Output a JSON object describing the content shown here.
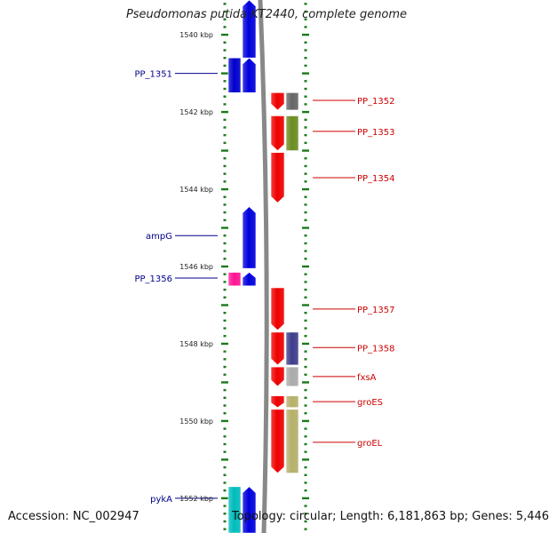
{
  "title": "Pseudomonas putida KT2440, complete genome",
  "accession_label": "Accession: NC_002947",
  "summary_label": "Topology: circular; Length: 6,181,863 bp; Genes: 5,446",
  "scale": {
    "start_kbp": 1539.1,
    "end_kbp": 1552.9,
    "tick_labels": [
      {
        "kbp": 1540,
        "text": "1540 kbp"
      },
      {
        "kbp": 1542,
        "text": "1542 kbp"
      },
      {
        "kbp": 1544,
        "text": "1544 kbp"
      },
      {
        "kbp": 1546,
        "text": "1546 kbp"
      },
      {
        "kbp": 1548,
        "text": "1548 kbp"
      },
      {
        "kbp": 1550,
        "text": "1550 kbp"
      },
      {
        "kbp": 1552,
        "text": "1552 kbp"
      }
    ]
  },
  "colors": {
    "forward_strand": "#0000dd",
    "reverse_strand": "#ee0000",
    "forward_label": "#00008b",
    "reverse_label": "#cc0000",
    "tick": "#1a7a1a",
    "backbone": "#888888"
  },
  "genes": [
    {
      "name": "",
      "strand": "+",
      "start_kbp": 1539.1,
      "end_kbp": 1540.6,
      "lane": "cds"
    },
    {
      "name": "PP_1351",
      "strand": "+",
      "start_kbp": 1540.6,
      "end_kbp": 1541.5,
      "lane": "cds"
    },
    {
      "name": "PP_1351",
      "strand": "+",
      "start_kbp": 1540.6,
      "end_kbp": 1541.5,
      "lane": "feature",
      "color": "#0000cc"
    },
    {
      "name": "PP_1352",
      "strand": "-",
      "start_kbp": 1541.5,
      "end_kbp": 1541.95,
      "lane": "cds"
    },
    {
      "name": "PP_1352",
      "strand": "-",
      "start_kbp": 1541.5,
      "end_kbp": 1541.95,
      "lane": "feature",
      "color": "#666666"
    },
    {
      "name": "PP_1353",
      "strand": "-",
      "start_kbp": 1542.1,
      "end_kbp": 1543.0,
      "lane": "cds"
    },
    {
      "name": "PP_1353",
      "strand": "-",
      "start_kbp": 1542.1,
      "end_kbp": 1543.0,
      "lane": "feature",
      "color": "#6b8c21"
    },
    {
      "name": "PP_1354",
      "strand": "-",
      "start_kbp": 1543.05,
      "end_kbp": 1544.35,
      "lane": "cds"
    },
    {
      "name": "ampG",
      "strand": "+",
      "start_kbp": 1544.45,
      "end_kbp": 1546.05,
      "lane": "cds"
    },
    {
      "name": "PP_1356",
      "strand": "+",
      "start_kbp": 1546.15,
      "end_kbp": 1546.5,
      "lane": "cds"
    },
    {
      "name": "PP_1356",
      "strand": "+",
      "start_kbp": 1546.15,
      "end_kbp": 1546.5,
      "lane": "feature",
      "color": "#ff1493"
    },
    {
      "name": "PP_1357",
      "strand": "-",
      "start_kbp": 1546.55,
      "end_kbp": 1547.65,
      "lane": "cds"
    },
    {
      "name": "PP_1358",
      "strand": "-",
      "start_kbp": 1547.7,
      "end_kbp": 1548.55,
      "lane": "cds"
    },
    {
      "name": "PP_1358",
      "strand": "-",
      "start_kbp": 1547.7,
      "end_kbp": 1548.55,
      "lane": "feature",
      "color": "#3d3d8c"
    },
    {
      "name": "fxsA",
      "strand": "-",
      "start_kbp": 1548.6,
      "end_kbp": 1549.1,
      "lane": "cds"
    },
    {
      "name": "fxsA",
      "strand": "-",
      "start_kbp": 1548.6,
      "end_kbp": 1549.1,
      "lane": "feature",
      "color": "#aaaaaa"
    },
    {
      "name": "groES",
      "strand": "-",
      "start_kbp": 1549.35,
      "end_kbp": 1549.65,
      "lane": "cds"
    },
    {
      "name": "groES",
      "strand": "-",
      "start_kbp": 1549.35,
      "end_kbp": 1549.65,
      "lane": "feature",
      "color": "#b5b06a"
    },
    {
      "name": "groEL",
      "strand": "-",
      "start_kbp": 1549.7,
      "end_kbp": 1551.35,
      "lane": "cds"
    },
    {
      "name": "groEL",
      "strand": "-",
      "start_kbp": 1549.7,
      "end_kbp": 1551.35,
      "lane": "feature",
      "color": "#b5b06a"
    },
    {
      "name": "pykA",
      "strand": "+",
      "start_kbp": 1551.7,
      "end_kbp": 1552.9,
      "lane": "cds"
    },
    {
      "name": "pykA",
      "strand": "+",
      "start_kbp": 1551.7,
      "end_kbp": 1552.9,
      "lane": "feature",
      "color": "#00bcbc"
    }
  ],
  "gene_labels": [
    {
      "text": "PP_1351",
      "side": "left",
      "kbp": 1541.0
    },
    {
      "text": "PP_1352",
      "side": "right",
      "kbp": 1541.7
    },
    {
      "text": "PP_1353",
      "side": "right",
      "kbp": 1542.5
    },
    {
      "text": "PP_1354",
      "side": "right",
      "kbp": 1543.7
    },
    {
      "text": "ampG",
      "side": "left",
      "kbp": 1545.2
    },
    {
      "text": "PP_1356",
      "side": "left",
      "kbp": 1546.3
    },
    {
      "text": "PP_1357",
      "side": "right",
      "kbp": 1547.1
    },
    {
      "text": "PP_1358",
      "side": "right",
      "kbp": 1548.1
    },
    {
      "text": "fxsA",
      "side": "right",
      "kbp": 1548.85
    },
    {
      "text": "groES",
      "side": "right",
      "kbp": 1549.5
    },
    {
      "text": "groEL",
      "side": "right",
      "kbp": 1550.55
    },
    {
      "text": "pykA",
      "side": "left",
      "kbp": 1552.0
    }
  ]
}
